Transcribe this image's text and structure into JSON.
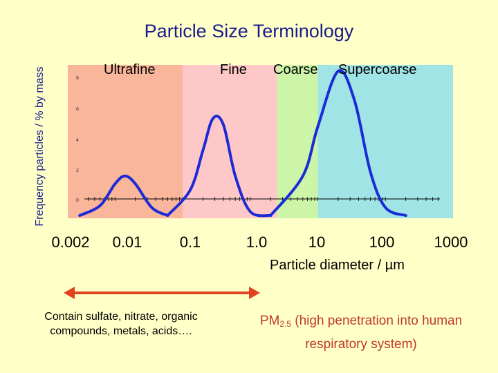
{
  "title": "Particle Size Terminology",
  "ylabel": "Frequency particles / % by mass",
  "xlabel_prefix": "Particle diameter / ",
  "xlabel_unit": "µm",
  "regions": [
    {
      "name": "Ultrafine",
      "from": 0.002,
      "to": 0.1,
      "color": "#f9b69a"
    },
    {
      "name": "Fine",
      "from": 0.1,
      "to": 2.5,
      "color": "#ffc8c8"
    },
    {
      "name": "Coarse",
      "from": 2.5,
      "to": 10,
      "color": "#ccf5a8"
    },
    {
      "name": "Supercoarse",
      "from": 10,
      "to": 1000,
      "color": "#a0e4e6"
    }
  ],
  "xtick_labels": [
    "0.002",
    "0.01",
    "0.1",
    "1.0",
    "10",
    "100",
    "1000"
  ],
  "left_note": "Contain sulfate, nitrate, organic compounds, metals, acids….",
  "right_note_pm": "PM",
  "right_note_sub": "2.5",
  "right_note_rest": " (high penetration into human respiratory system)",
  "arrow_color": "#e2421f",
  "chart_data": {
    "type": "line",
    "x_scale": "log",
    "y_inner_ticks": [
      "0",
      "2",
      "4",
      "6",
      "8"
    ],
    "series": [
      {
        "values": [
          [
            0.003,
            0
          ],
          [
            0.006,
            0.5
          ],
          [
            0.01,
            1.6
          ],
          [
            0.014,
            2.0
          ],
          [
            0.02,
            1.6
          ],
          [
            0.035,
            0.4
          ],
          [
            0.06,
            0
          ]
        ]
      },
      {
        "values": [
          [
            0.06,
            0
          ],
          [
            0.13,
            1.3
          ],
          [
            0.2,
            3.3
          ],
          [
            0.28,
            4.9
          ],
          [
            0.4,
            4.6
          ],
          [
            0.6,
            2.0
          ],
          [
            1.0,
            0.2
          ],
          [
            2.0,
            0
          ]
        ]
      },
      {
        "values": [
          [
            2.0,
            0
          ],
          [
            6.0,
            2.0
          ],
          [
            10,
            4.5
          ],
          [
            20,
            7.3
          ],
          [
            35,
            5.8
          ],
          [
            60,
            2.2
          ],
          [
            100,
            0.4
          ],
          [
            200,
            0
          ]
        ]
      }
    ],
    "xlim": [
      0.002,
      1000
    ],
    "ylim": [
      0,
      8
    ]
  }
}
